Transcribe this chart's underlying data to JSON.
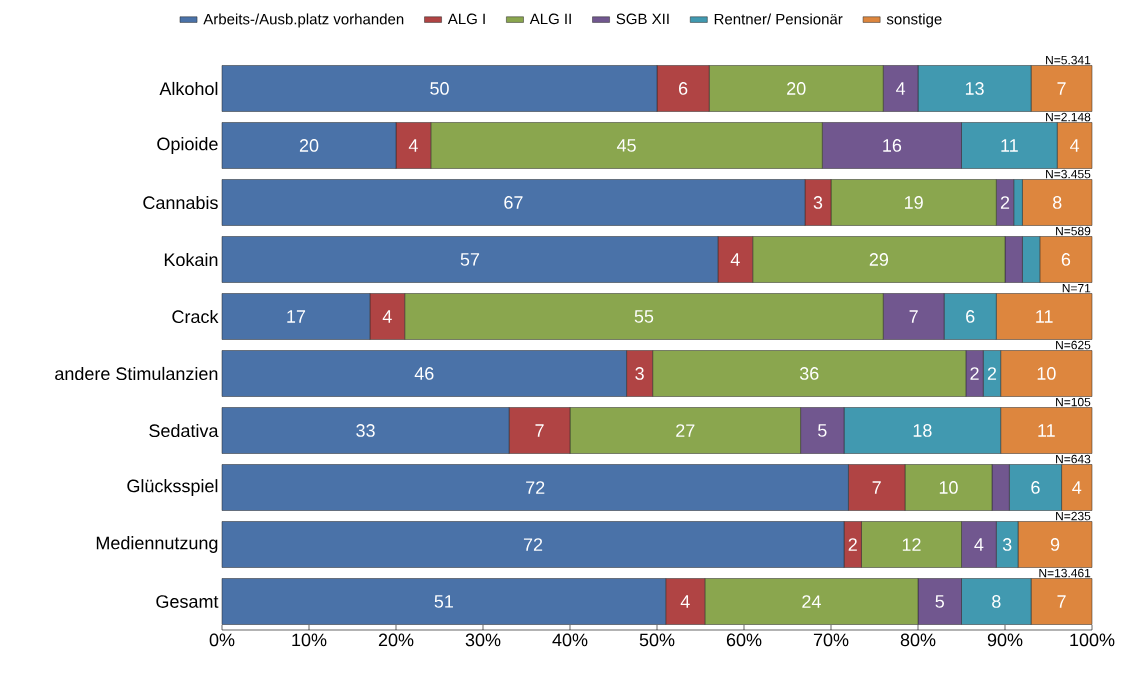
{
  "chart_data": {
    "type": "bar",
    "orientation": "horizontal",
    "stacked": true,
    "legend": "top",
    "grid": false,
    "categories": [
      "Alkohol",
      "Opioide",
      "Cannabis",
      "Kokain",
      "Crack",
      "andere Stimulanzien",
      "Sedativa",
      "Glücksspiel",
      "Mediennutzung",
      "Gesamt"
    ],
    "xlim": [
      0,
      100
    ],
    "xticks": [
      {
        "value": 0,
        "label": "0%"
      },
      {
        "value": 10,
        "label": "10%"
      },
      {
        "value": 20,
        "label": "20%"
      },
      {
        "value": 30,
        "label": "30%"
      },
      {
        "value": 40,
        "label": "40%"
      },
      {
        "value": 50,
        "label": "50%"
      },
      {
        "value": 60,
        "label": "60%"
      },
      {
        "value": 70,
        "label": "70%"
      },
      {
        "value": 80,
        "label": "80%"
      },
      {
        "value": 90,
        "label": "90%"
      },
      {
        "value": 100,
        "label": "100%"
      }
    ],
    "series": [
      {
        "name": "Arbeits-/Ausb.platz vorhanden",
        "color": "#4a72a8",
        "values": [
          50,
          20,
          67,
          57,
          17,
          46.5,
          33,
          72,
          71.5,
          51
        ],
        "value_labels": [
          "50",
          "20",
          "67",
          "57",
          "17",
          "46",
          "33",
          "72",
          "72",
          "51"
        ]
      },
      {
        "name": "ALG I",
        "color": "#b04444",
        "values": [
          6,
          4,
          3,
          4,
          4,
          3,
          7,
          6.5,
          2,
          4.5
        ],
        "value_labels": [
          "6",
          "4",
          "3",
          "4",
          "4",
          "3",
          "7",
          "7",
          "2",
          "4"
        ]
      },
      {
        "name": "ALG II",
        "color": "#8aa64e",
        "values": [
          20,
          45,
          19,
          29,
          55,
          36,
          26.5,
          10,
          11.5,
          24.5
        ],
        "value_labels": [
          "20",
          "45",
          "19",
          "29",
          "55",
          "36",
          "27",
          "10",
          "12",
          "24"
        ]
      },
      {
        "name": "SGB XII",
        "color": "#71578f",
        "values": [
          4,
          16,
          2,
          2,
          7,
          2,
          5,
          2,
          4,
          5
        ],
        "value_labels": [
          "4",
          "16",
          "2",
          null,
          "7",
          "2",
          "5",
          null,
          "4",
          "5"
        ]
      },
      {
        "name": "Rentner/ Pensionär",
        "color": "#4199b0",
        "values": [
          13,
          11,
          1,
          2,
          6,
          2,
          18,
          6,
          2.5,
          8
        ],
        "value_labels": [
          "13",
          "11",
          null,
          null,
          "6",
          "2",
          "18",
          "6",
          "3",
          "8"
        ]
      },
      {
        "name": "sonstige",
        "color": "#dd863e",
        "values": [
          7,
          4,
          8,
          6,
          11,
          10.5,
          10.5,
          3.5,
          8.5,
          7
        ],
        "value_labels": [
          "7",
          "4",
          "8",
          "6",
          "11",
          "10",
          "11",
          "4",
          "9",
          "7"
        ]
      }
    ],
    "annotations": [
      "N=5.341",
      "N=2.148",
      "N=3.455",
      "N=589",
      "N=71",
      "N=625",
      "N=105",
      "N=643",
      "N=235",
      "N=13.461"
    ]
  }
}
